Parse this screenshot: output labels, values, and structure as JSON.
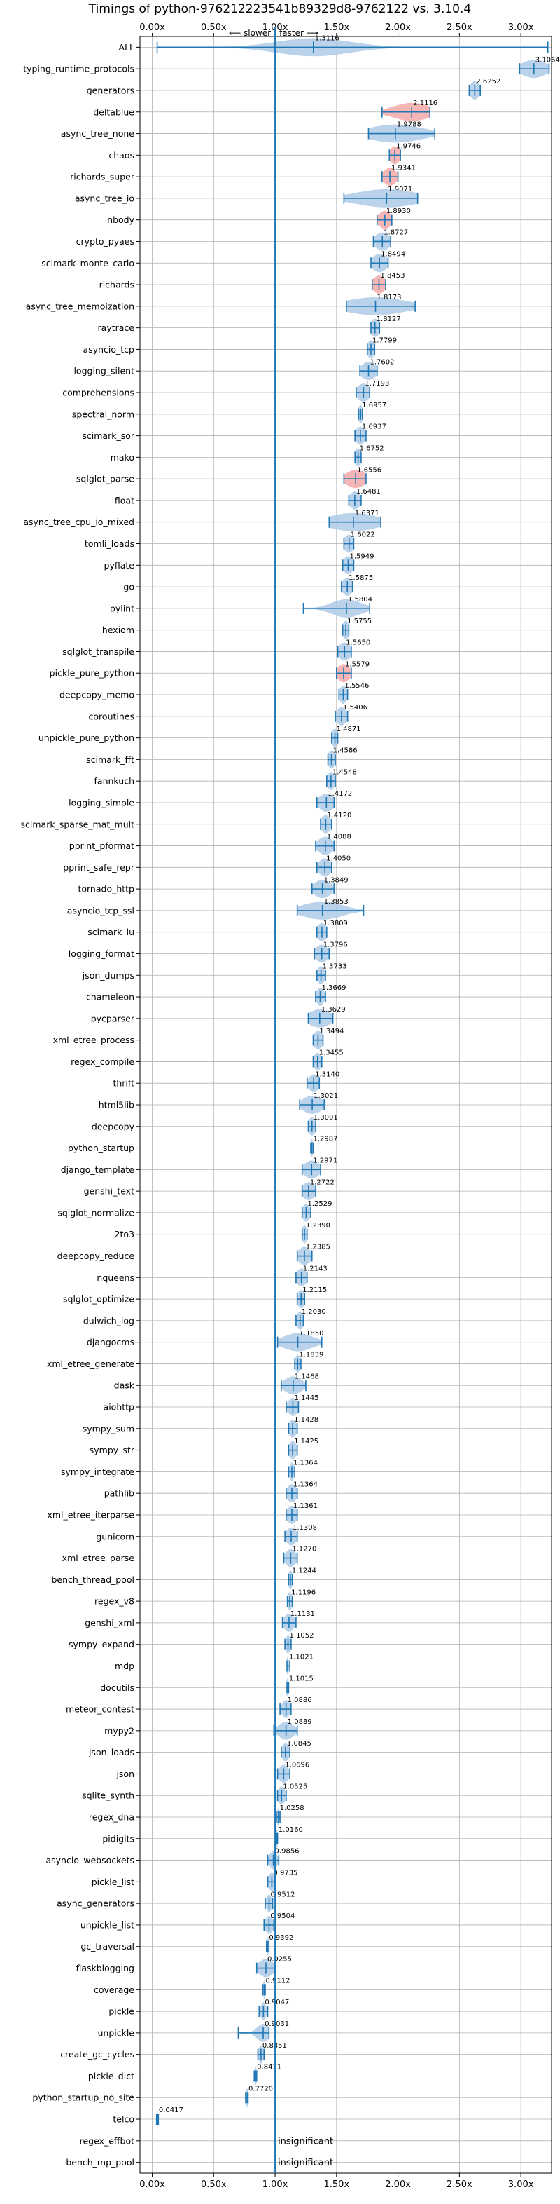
{
  "chart_data": {
    "type": "violin",
    "title": "Timings of python-976212223541b89329d8-9762122 vs. 3.10.4",
    "xlabel": "",
    "ylabel": "",
    "xlim": [
      -0.1,
      3.25
    ],
    "x_ticks": [
      0.0,
      0.5,
      1.0,
      1.5,
      2.0,
      2.5,
      3.0
    ],
    "x_tick_labels": [
      "0.00x",
      "0.50x",
      "1.00x",
      "1.50x",
      "2.00x",
      "2.50x",
      "3.00x"
    ],
    "reference_line": 1.0,
    "annotation_slower": "⟵ slower",
    "annotation_faster": "faster ⟶",
    "grid": true,
    "colors": {
      "faster": "#1f77b4",
      "faster_fill": "#aecbe8",
      "slower": "#d62728",
      "slower_fill": "#f5a9a9",
      "grid": "#b0b0b0"
    },
    "benchmarks": [
      {
        "name": "ALL",
        "value": 1.3116,
        "label": "1.3116",
        "lo": 0.04,
        "hi": 3.22,
        "spread": 0.3
      },
      {
        "name": "typing_runtime_protocols",
        "value": 3.1064,
        "label": "3.1064",
        "lo": 2.99,
        "hi": 3.23,
        "spread": 0.1
      },
      {
        "name": "generators",
        "value": 2.6252,
        "label": "2.6252",
        "lo": 2.58,
        "hi": 2.67,
        "spread": 0.04
      },
      {
        "name": "deltablue",
        "value": 2.1116,
        "label": "2.1116",
        "lo": 1.87,
        "hi": 2.26,
        "spread": 0.15
      },
      {
        "name": "async_tree_none",
        "value": 1.9788,
        "label": "1.9788",
        "lo": 1.76,
        "hi": 2.3,
        "spread": 0.22
      },
      {
        "name": "chaos",
        "value": 1.9746,
        "label": "1.9746",
        "lo": 1.93,
        "hi": 2.02,
        "spread": 0.04
      },
      {
        "name": "richards_super",
        "value": 1.9341,
        "label": "1.9341",
        "lo": 1.87,
        "hi": 2.0,
        "spread": 0.05
      },
      {
        "name": "async_tree_io",
        "value": 1.9071,
        "label": "1.9071",
        "lo": 1.56,
        "hi": 2.16,
        "spread": 0.25
      },
      {
        "name": "nbody",
        "value": 1.893,
        "label": "1.8930",
        "lo": 1.83,
        "hi": 1.95,
        "spread": 0.05
      },
      {
        "name": "crypto_pyaes",
        "value": 1.8727,
        "label": "1.8727",
        "lo": 1.8,
        "hi": 1.94,
        "spread": 0.06
      },
      {
        "name": "scimark_monte_carlo",
        "value": 1.8494,
        "label": "1.8494",
        "lo": 1.78,
        "hi": 1.92,
        "spread": 0.06
      },
      {
        "name": "richards",
        "value": 1.8453,
        "label": "1.8453",
        "lo": 1.79,
        "hi": 1.9,
        "spread": 0.05
      },
      {
        "name": "async_tree_memoization",
        "value": 1.8173,
        "label": "1.8173",
        "lo": 1.58,
        "hi": 2.14,
        "spread": 0.24
      },
      {
        "name": "raytrace",
        "value": 1.8127,
        "label": "1.8127",
        "lo": 1.78,
        "hi": 1.85,
        "spread": 0.04
      },
      {
        "name": "asyncio_tcp",
        "value": 1.7799,
        "label": "1.7799",
        "lo": 1.75,
        "hi": 1.81,
        "spread": 0.03
      },
      {
        "name": "logging_silent",
        "value": 1.7602,
        "label": "1.7602",
        "lo": 1.69,
        "hi": 1.83,
        "spread": 0.06
      },
      {
        "name": "comprehensions",
        "value": 1.7193,
        "label": "1.7193",
        "lo": 1.66,
        "hi": 1.77,
        "spread": 0.05
      },
      {
        "name": "spectral_norm",
        "value": 1.6957,
        "label": "1.6957",
        "lo": 1.68,
        "hi": 1.71,
        "spread": 0.02
      },
      {
        "name": "scimark_sor",
        "value": 1.6937,
        "label": "1.6937",
        "lo": 1.65,
        "hi": 1.74,
        "spread": 0.04
      },
      {
        "name": "mako",
        "value": 1.6752,
        "label": "1.6752",
        "lo": 1.65,
        "hi": 1.7,
        "spread": 0.03
      },
      {
        "name": "sqlglot_parse",
        "value": 1.6556,
        "label": "1.6556",
        "lo": 1.56,
        "hi": 1.74,
        "spread": 0.08
      },
      {
        "name": "float",
        "value": 1.6481,
        "label": "1.6481",
        "lo": 1.6,
        "hi": 1.7,
        "spread": 0.04
      },
      {
        "name": "async_tree_cpu_io_mixed",
        "value": 1.6371,
        "label": "1.6371",
        "lo": 1.44,
        "hi": 1.86,
        "spread": 0.2
      },
      {
        "name": "tomli_loads",
        "value": 1.6022,
        "label": "1.6022",
        "lo": 1.56,
        "hi": 1.64,
        "spread": 0.04
      },
      {
        "name": "pyflate",
        "value": 1.5949,
        "label": "1.5949",
        "lo": 1.55,
        "hi": 1.64,
        "spread": 0.04
      },
      {
        "name": "go",
        "value": 1.5875,
        "label": "1.5875",
        "lo": 1.54,
        "hi": 1.63,
        "spread": 0.04
      },
      {
        "name": "pylint",
        "value": 1.5804,
        "label": "1.5804",
        "lo": 1.23,
        "hi": 1.77,
        "spread": 0.12
      },
      {
        "name": "hexiom",
        "value": 1.5755,
        "label": "1.5755",
        "lo": 1.55,
        "hi": 1.6,
        "spread": 0.03
      },
      {
        "name": "sqlglot_transpile",
        "value": 1.565,
        "label": "1.5650",
        "lo": 1.51,
        "hi": 1.62,
        "spread": 0.05
      },
      {
        "name": "pickle_pure_python",
        "value": 1.5579,
        "label": "1.5579",
        "lo": 1.5,
        "hi": 1.62,
        "spread": 0.05
      },
      {
        "name": "deepcopy_memo",
        "value": 1.5546,
        "label": "1.5546",
        "lo": 1.52,
        "hi": 1.59,
        "spread": 0.03
      },
      {
        "name": "coroutines",
        "value": 1.5406,
        "label": "1.5406",
        "lo": 1.49,
        "hi": 1.59,
        "spread": 0.04
      },
      {
        "name": "unpickle_pure_python",
        "value": 1.4871,
        "label": "1.4871",
        "lo": 1.46,
        "hi": 1.51,
        "spread": 0.03
      },
      {
        "name": "scimark_fft",
        "value": 1.4586,
        "label": "1.4586",
        "lo": 1.43,
        "hi": 1.49,
        "spread": 0.03
      },
      {
        "name": "fannkuch",
        "value": 1.4548,
        "label": "1.4548",
        "lo": 1.42,
        "hi": 1.49,
        "spread": 0.03
      },
      {
        "name": "logging_simple",
        "value": 1.4172,
        "label": "1.4172",
        "lo": 1.34,
        "hi": 1.48,
        "spread": 0.06
      },
      {
        "name": "scimark_sparse_mat_mult",
        "value": 1.412,
        "label": "1.4120",
        "lo": 1.37,
        "hi": 1.46,
        "spread": 0.04
      },
      {
        "name": "pprint_pformat",
        "value": 1.4088,
        "label": "1.4088",
        "lo": 1.33,
        "hi": 1.48,
        "spread": 0.06
      },
      {
        "name": "pprint_safe_repr",
        "value": 1.405,
        "label": "1.4050",
        "lo": 1.34,
        "hi": 1.46,
        "spread": 0.05
      },
      {
        "name": "tornado_http",
        "value": 1.3849,
        "label": "1.3849",
        "lo": 1.3,
        "hi": 1.48,
        "spread": 0.07
      },
      {
        "name": "asyncio_tcp_ssl",
        "value": 1.3853,
        "label": "1.3853",
        "lo": 1.18,
        "hi": 1.72,
        "spread": 0.16
      },
      {
        "name": "scimark_lu",
        "value": 1.3809,
        "label": "1.3809",
        "lo": 1.34,
        "hi": 1.42,
        "spread": 0.04
      },
      {
        "name": "logging_format",
        "value": 1.3796,
        "label": "1.3796",
        "lo": 1.32,
        "hi": 1.44,
        "spread": 0.05
      },
      {
        "name": "json_dumps",
        "value": 1.3733,
        "label": "1.3733",
        "lo": 1.34,
        "hi": 1.41,
        "spread": 0.03
      },
      {
        "name": "chameleon",
        "value": 1.3669,
        "label": "1.3669",
        "lo": 1.33,
        "hi": 1.41,
        "spread": 0.03
      },
      {
        "name": "pycparser",
        "value": 1.3629,
        "label": "1.3629",
        "lo": 1.27,
        "hi": 1.47,
        "spread": 0.09
      },
      {
        "name": "xml_etree_process",
        "value": 1.3494,
        "label": "1.3494",
        "lo": 1.31,
        "hi": 1.39,
        "spread": 0.04
      },
      {
        "name": "regex_compile",
        "value": 1.3455,
        "label": "1.3455",
        "lo": 1.31,
        "hi": 1.38,
        "spread": 0.03
      },
      {
        "name": "thrift",
        "value": 1.314,
        "label": "1.3140",
        "lo": 1.26,
        "hi": 1.36,
        "spread": 0.04
      },
      {
        "name": "html5lib",
        "value": 1.3021,
        "label": "1.3021",
        "lo": 1.2,
        "hi": 1.4,
        "spread": 0.08
      },
      {
        "name": "deepcopy",
        "value": 1.3001,
        "label": "1.3001",
        "lo": 1.27,
        "hi": 1.33,
        "spread": 0.03
      },
      {
        "name": "python_startup",
        "value": 1.2987,
        "label": "1.2987",
        "lo": 1.29,
        "hi": 1.31,
        "spread": 0.01
      },
      {
        "name": "django_template",
        "value": 1.2971,
        "label": "1.2971",
        "lo": 1.22,
        "hi": 1.37,
        "spread": 0.06
      },
      {
        "name": "genshi_text",
        "value": 1.2722,
        "label": "1.2722",
        "lo": 1.22,
        "hi": 1.33,
        "spread": 0.05
      },
      {
        "name": "sqlglot_normalize",
        "value": 1.2529,
        "label": "1.2529",
        "lo": 1.22,
        "hi": 1.29,
        "spread": 0.03
      },
      {
        "name": "2to3",
        "value": 1.239,
        "label": "1.2390",
        "lo": 1.22,
        "hi": 1.26,
        "spread": 0.02
      },
      {
        "name": "deepcopy_reduce",
        "value": 1.2385,
        "label": "1.2385",
        "lo": 1.18,
        "hi": 1.3,
        "spread": 0.05
      },
      {
        "name": "nqueens",
        "value": 1.2143,
        "label": "1.2143",
        "lo": 1.17,
        "hi": 1.26,
        "spread": 0.04
      },
      {
        "name": "sqlglot_optimize",
        "value": 1.2115,
        "label": "1.2115",
        "lo": 1.18,
        "hi": 1.24,
        "spread": 0.03
      },
      {
        "name": "dulwich_log",
        "value": 1.203,
        "label": "1.2030",
        "lo": 1.17,
        "hi": 1.23,
        "spread": 0.03
      },
      {
        "name": "djangocms",
        "value": 1.185,
        "label": "1.1850",
        "lo": 1.02,
        "hi": 1.38,
        "spread": 0.12
      },
      {
        "name": "xml_etree_generate",
        "value": 1.1839,
        "label": "1.1839",
        "lo": 1.16,
        "hi": 1.21,
        "spread": 0.02
      },
      {
        "name": "dask",
        "value": 1.1468,
        "label": "1.1468",
        "lo": 1.05,
        "hi": 1.25,
        "spread": 0.07
      },
      {
        "name": "aiohttp",
        "value": 1.1445,
        "label": "1.1445",
        "lo": 1.09,
        "hi": 1.19,
        "spread": 0.04
      },
      {
        "name": "sympy_sum",
        "value": 1.1428,
        "label": "1.1428",
        "lo": 1.11,
        "hi": 1.18,
        "spread": 0.03
      },
      {
        "name": "sympy_str",
        "value": 1.1425,
        "label": "1.1425",
        "lo": 1.11,
        "hi": 1.18,
        "spread": 0.03
      },
      {
        "name": "sympy_integrate",
        "value": 1.1364,
        "label": "1.1364",
        "lo": 1.11,
        "hi": 1.16,
        "spread": 0.02
      },
      {
        "name": "pathlib",
        "value": 1.1364,
        "label": "1.1364",
        "lo": 1.09,
        "hi": 1.18,
        "spread": 0.04
      },
      {
        "name": "xml_etree_iterparse",
        "value": 1.1361,
        "label": "1.1361",
        "lo": 1.09,
        "hi": 1.18,
        "spread": 0.04
      },
      {
        "name": "gunicorn",
        "value": 1.1308,
        "label": "1.1308",
        "lo": 1.08,
        "hi": 1.18,
        "spread": 0.04
      },
      {
        "name": "xml_etree_parse",
        "value": 1.127,
        "label": "1.1270",
        "lo": 1.07,
        "hi": 1.18,
        "spread": 0.04
      },
      {
        "name": "bench_thread_pool",
        "value": 1.1244,
        "label": "1.1244",
        "lo": 1.11,
        "hi": 1.14,
        "spread": 0.02
      },
      {
        "name": "regex_v8",
        "value": 1.1196,
        "label": "1.1196",
        "lo": 1.1,
        "hi": 1.14,
        "spread": 0.02
      },
      {
        "name": "genshi_xml",
        "value": 1.1131,
        "label": "1.1131",
        "lo": 1.06,
        "hi": 1.17,
        "spread": 0.04
      },
      {
        "name": "sympy_expand",
        "value": 1.1052,
        "label": "1.1052",
        "lo": 1.08,
        "hi": 1.13,
        "spread": 0.02
      },
      {
        "name": "mdp",
        "value": 1.1021,
        "label": "1.1021",
        "lo": 1.09,
        "hi": 1.12,
        "spread": 0.01
      },
      {
        "name": "docutils",
        "value": 1.1015,
        "label": "1.1015",
        "lo": 1.09,
        "hi": 1.11,
        "spread": 0.01
      },
      {
        "name": "meteor_contest",
        "value": 1.0886,
        "label": "1.0886",
        "lo": 1.04,
        "hi": 1.13,
        "spread": 0.03
      },
      {
        "name": "mypy2",
        "value": 1.0889,
        "label": "1.0889",
        "lo": 0.99,
        "hi": 1.18,
        "spread": 0.06
      },
      {
        "name": "json_loads",
        "value": 1.0845,
        "label": "1.0845",
        "lo": 1.05,
        "hi": 1.12,
        "spread": 0.03
      },
      {
        "name": "json",
        "value": 1.0696,
        "label": "1.0696",
        "lo": 1.02,
        "hi": 1.12,
        "spread": 0.04
      },
      {
        "name": "sqlite_synth",
        "value": 1.0525,
        "label": "1.0525",
        "lo": 1.02,
        "hi": 1.09,
        "spread": 0.03
      },
      {
        "name": "regex_dna",
        "value": 1.0258,
        "label": "1.0258",
        "lo": 1.01,
        "hi": 1.04,
        "spread": 0.01
      },
      {
        "name": "pidigits",
        "value": 1.016,
        "label": "1.0160",
        "lo": 1.01,
        "hi": 1.02,
        "spread": 0.01
      },
      {
        "name": "asyncio_websockets",
        "value": 0.9856,
        "label": "0.9856",
        "lo": 0.94,
        "hi": 1.03,
        "spread": 0.03
      },
      {
        "name": "pickle_list",
        "value": 0.9735,
        "label": "0.9735",
        "lo": 0.94,
        "hi": 1.0,
        "spread": 0.03
      },
      {
        "name": "async_generators",
        "value": 0.9512,
        "label": "0.9512",
        "lo": 0.92,
        "hi": 0.98,
        "spread": 0.02
      },
      {
        "name": "unpickle_list",
        "value": 0.9504,
        "label": "0.9504",
        "lo": 0.91,
        "hi": 0.99,
        "spread": 0.03
      },
      {
        "name": "gc_traversal",
        "value": 0.9392,
        "label": "0.9392",
        "lo": 0.93,
        "hi": 0.95,
        "spread": 0.01
      },
      {
        "name": "flaskblogging",
        "value": 0.9255,
        "label": "0.9255",
        "lo": 0.85,
        "hi": 1.0,
        "spread": 0.06
      },
      {
        "name": "coverage",
        "value": 0.9112,
        "label": "0.9112",
        "lo": 0.9,
        "hi": 0.92,
        "spread": 0.01
      },
      {
        "name": "pickle",
        "value": 0.9047,
        "label": "0.9047",
        "lo": 0.87,
        "hi": 0.94,
        "spread": 0.02
      },
      {
        "name": "unpickle",
        "value": 0.9031,
        "label": "0.9031",
        "lo": 0.7,
        "hi": 0.95,
        "spread": 0.05
      },
      {
        "name": "create_gc_cycles",
        "value": 0.8851,
        "label": "0.8851",
        "lo": 0.86,
        "hi": 0.91,
        "spread": 0.02
      },
      {
        "name": "pickle_dict",
        "value": 0.8411,
        "label": "0.8411",
        "lo": 0.83,
        "hi": 0.85,
        "spread": 0.01
      },
      {
        "name": "python_startup_no_site",
        "value": 0.772,
        "label": "0.7720",
        "lo": 0.76,
        "hi": 0.78,
        "spread": 0.01
      },
      {
        "name": "telco",
        "value": 0.0417,
        "label": "0.0417",
        "lo": 0.035,
        "hi": 0.05,
        "spread": 0.005
      },
      {
        "name": "regex_effbot",
        "value": null,
        "label": "insignificant"
      },
      {
        "name": "bench_mp_pool",
        "value": null,
        "label": "insignificant"
      }
    ]
  }
}
